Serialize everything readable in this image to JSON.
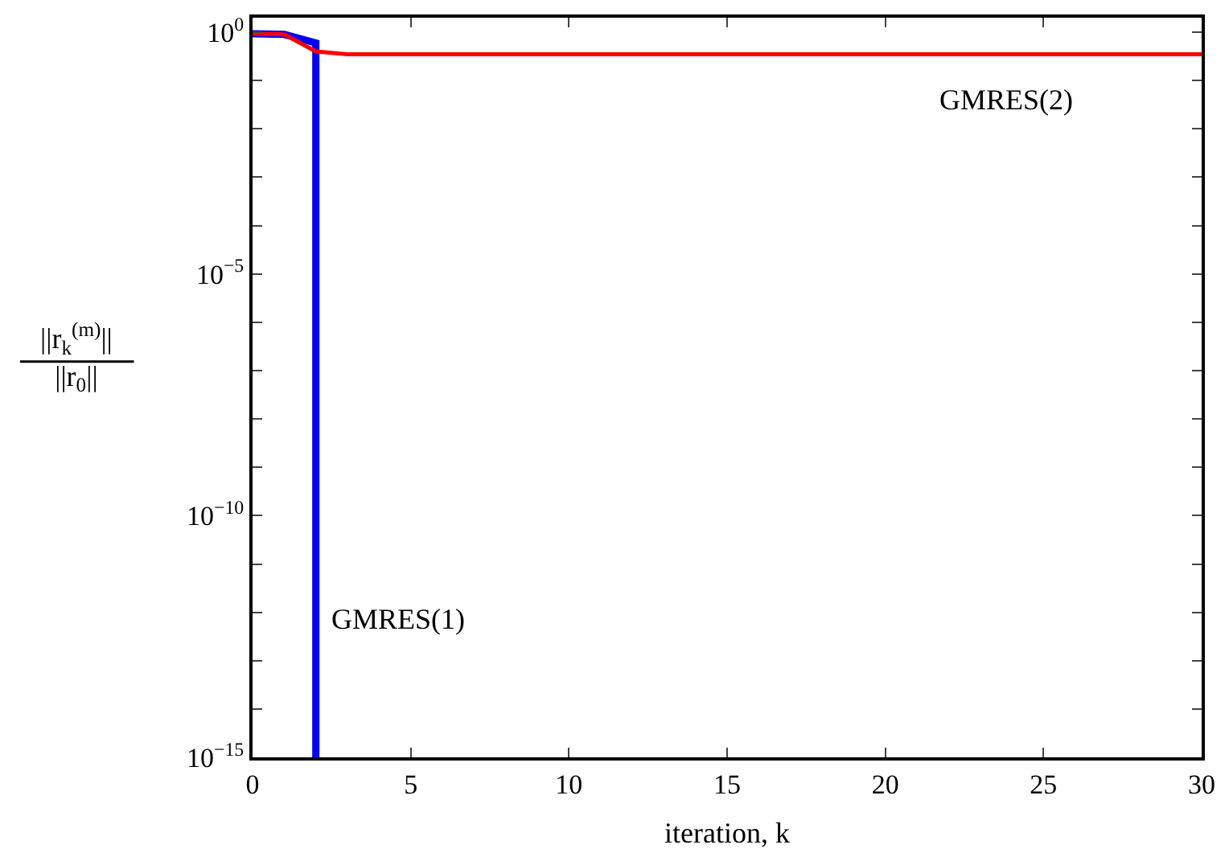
{
  "chart_data": {
    "type": "line",
    "xlabel": "iteration, k",
    "ylabel": "||r$_{k}$$^{(m)}$||\n||r$_{0}$||",
    "log": "y",
    "marker": "none",
    "line_style": "solid",
    "xlim": [
      0,
      30
    ],
    "xticks": [
      0,
      5,
      10,
      15,
      20,
      25,
      30
    ],
    "ylim": [
      1e-15,
      2
    ],
    "yticks": [
      {
        "value": 1,
        "label": "10$^{0}$"
      },
      {
        "value": 0.1,
        "label": null
      },
      {
        "value": 0.01,
        "label": null
      },
      {
        "value": 0.001,
        "label": null
      },
      {
        "value": 0.0001,
        "label": null
      },
      {
        "value": 1e-05,
        "label": "10$^{−5}$"
      },
      {
        "value": 1e-06,
        "label": null
      },
      {
        "value": 1e-07,
        "label": null
      },
      {
        "value": 1e-08,
        "label": null
      },
      {
        "value": 1e-09,
        "label": null
      },
      {
        "value": 1e-10,
        "label": "10$^{−10}$"
      },
      {
        "value": 1e-11,
        "label": null
      },
      {
        "value": 1e-12,
        "label": null
      },
      {
        "value": 1e-13,
        "label": null
      },
      {
        "value": 1e-14,
        "label": null
      },
      {
        "value": 1e-15,
        "label": "10$^{−15}$"
      }
    ],
    "series": [
      {
        "color": "#0000ff",
        "x": [
          0,
          1,
          2,
          2
        ],
        "values": [
          0.93,
          0.9,
          0.6,
          1e-15
        ]
      },
      {
        "color": "#ff0000",
        "x": [
          0,
          1,
          2,
          3,
          30
        ],
        "values": [
          0.93,
          0.9,
          0.4,
          0.35,
          0.35
        ]
      }
    ],
    "annotations": [
      "GMRES(1)",
      "GMRES(2)"
    ]
  }
}
